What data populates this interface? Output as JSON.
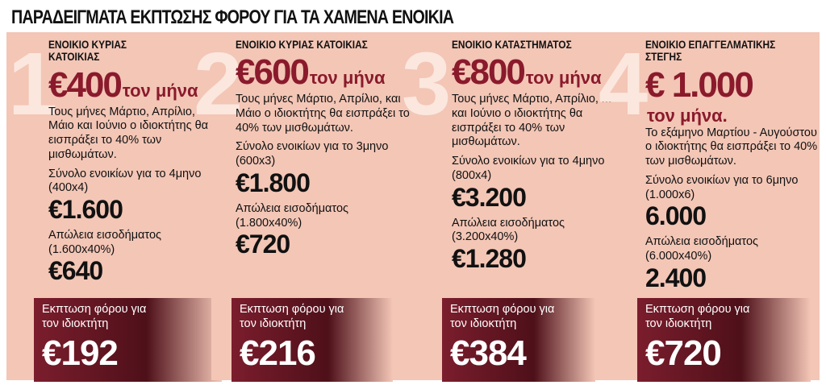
{
  "title": "ΠΑΡΑΔΕΙΓΜΑΤΑ ΕΚΠΤΩΣΗΣ ΦΟΡΟΥ ΓΙΑ ΤΑ ΧΑΜΕΝΑ ΕΝΟΙΚΙΑ",
  "cards": [
    {
      "number": "1",
      "heading": "ΕΝΟΙΚΙΟ ΚΥΡΙΑΣ ΚΑΤΟΙΚΙΑΣ",
      "price": "€400",
      "price_unit": "τον μήνα",
      "description": "Τους μήνες Μάρτιο, Απρίλιο, Μάιο και Ιούνιο ο ιδιοκτήτης θα εισπράξει το 40% των μισθωμάτων.",
      "total_label": "Σύνολο ενοικίων για το 4μηνο (400x4)",
      "total": "€1.600",
      "loss_label": "Απώλεια εισοδήματος (1.600x40%)",
      "loss": "€640",
      "discount_label": "Εκπτωση φόρου για τον ιδιοκτήτη",
      "discount": "€192"
    },
    {
      "number": "2",
      "heading": "ΕΝΟΙΚΙΟ ΚΥΡΙΑΣ ΚΑΤΟΙΚΙΑΣ",
      "price": "€600",
      "price_unit": "τον μήνα",
      "description": "Τους μήνες Μάρτιο, Απρίλιο, και Μάιο ο ιδιοκτήτης θα εισπράξει το 40% των μισθωμάτων.",
      "total_label": "Σύνολο ενοικίων για το 3μηνο (600x3)",
      "total": "€1.800",
      "loss_label": "Απώλεια εισοδήματος (1.800x40%)",
      "loss": "€720",
      "discount_label": "Εκπτωση φόρου για τον ιδιοκτήτη",
      "discount": "€216"
    },
    {
      "number": "3",
      "heading": "ΕΝΟΙΚΙΟ ΚΑΤΑΣΤΗΜΑΤΟΣ",
      "price": "€800",
      "price_unit": "τον μήνα",
      "description": "Τους μήνες Μάρτιο, Απρίλιο, Μάιο και Ιούνιο ο ιδιοκτήτης θα εισπράξει το 40% των μισθωμάτων.",
      "total_label": "Σύνολο ενοικίων για το 4μηνο (800x4)",
      "total": "€3.200",
      "loss_label": "Απώλεια εισοδήματος (3.200x40%)",
      "loss": "€1.280",
      "discount_label": "Εκπτωση φόρου για τον ιδιοκτήτη",
      "discount": "€384"
    },
    {
      "number": "4",
      "heading": "ΕΝΟΙΚΙΟ ΕΠΑΓΓΕΛΜΑΤΙΚΗΣ ΣΤΕΓΗΣ",
      "price": "€ 1.000",
      "price_unit": "τον μήνα.",
      "description": "Το εξάμηνο Μαρτίου - Αυγούστου ο ιδιοκτήτης θα εισπράξει το 40% των μισθωμάτων.",
      "total_label": "Σύνολο ενοικίων για το 6μηνο (1.000x6)",
      "total": "6.000",
      "loss_label": "Απώλεια εισοδήματος (6.000x40%)",
      "loss": "2.400",
      "discount_label": "Εκπτωση φόρου για τον ιδιοκτήτη",
      "discount": "€720"
    }
  ]
}
